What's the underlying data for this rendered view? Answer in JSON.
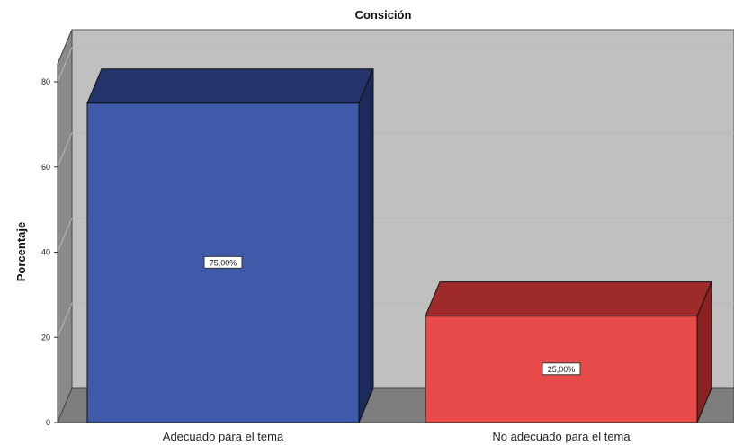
{
  "chart_data": {
    "type": "bar",
    "title": "Consición",
    "ylabel": "Porcentaje",
    "xlabel": "",
    "categories": [
      "Adecuado para el tema",
      "No adecuado para el tema"
    ],
    "values": [
      75,
      25
    ],
    "data_labels": [
      "75,00%",
      "25,00%"
    ],
    "ylim": [
      0,
      80
    ],
    "yticks": [
      "0",
      "20",
      "40",
      "60",
      "80"
    ],
    "grid": true,
    "style": "3d",
    "colors": {
      "bar_front": [
        "#3f5aa8",
        "#e94a4a"
      ],
      "bar_top": [
        "#22346a",
        "#9e2a2a"
      ],
      "bar_side": [
        "#1c2b5a",
        "#8b2222"
      ],
      "back_wall": "#c0c0c0",
      "side_wall": "#8a8a8a",
      "floor": "#7e7e7e"
    }
  }
}
